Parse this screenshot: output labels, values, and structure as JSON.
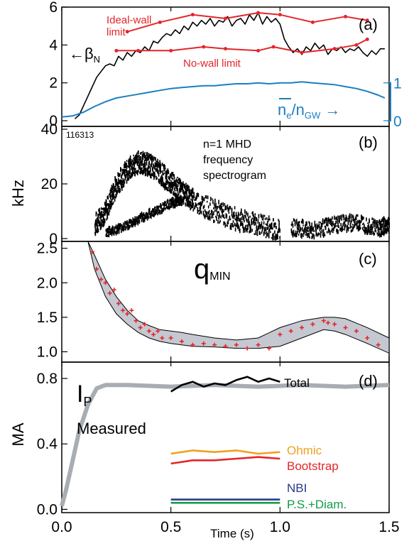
{
  "shot": "116313",
  "x_axis": {
    "label": "Time (s)",
    "range": [
      0,
      1.5
    ],
    "ticks": [
      "0.0",
      "0.5",
      "1.0",
      "1.5"
    ]
  },
  "colors": {
    "black": "#000000",
    "red": "#e4252b",
    "blue": "#1b7fc0",
    "gray": "#a8adb3",
    "band": "#c5c8d0",
    "orange": "#f0a020",
    "navy": "#283a8c",
    "green": "#149a48"
  },
  "chart_data": [
    {
      "type": "line",
      "panel": "(a)",
      "ylim": [
        -0.3,
        6
      ],
      "y_ticks": [
        "0",
        "2",
        "4",
        "6"
      ],
      "y2_ticks": [
        "0",
        "1"
      ],
      "labels": {
        "ideal_wall": "Ideal-wall\nlimit",
        "no_wall": "No-wall limit",
        "beta": "βN",
        "density": "ne/nGW"
      },
      "series": [
        {
          "name": "βN",
          "color": "black",
          "x": [
            0.06,
            0.08,
            0.1,
            0.12,
            0.14,
            0.16,
            0.18,
            0.2,
            0.22,
            0.24,
            0.26,
            0.28,
            0.3,
            0.32,
            0.34,
            0.36,
            0.38,
            0.4,
            0.42,
            0.44,
            0.46,
            0.48,
            0.5,
            0.52,
            0.54,
            0.56,
            0.58,
            0.6,
            0.62,
            0.64,
            0.66,
            0.68,
            0.7,
            0.72,
            0.74,
            0.76,
            0.78,
            0.8,
            0.82,
            0.84,
            0.86,
            0.88,
            0.9,
            0.92,
            0.94,
            0.96,
            0.98,
            1.0,
            1.02,
            1.04,
            1.06,
            1.08,
            1.1,
            1.12,
            1.14,
            1.16,
            1.18,
            1.2,
            1.22,
            1.24,
            1.26,
            1.28,
            1.3,
            1.32,
            1.34,
            1.36,
            1.38,
            1.4,
            1.42,
            1.44,
            1.46,
            1.48
          ],
          "y": [
            0.1,
            0.3,
            0.8,
            1.3,
            1.8,
            2.3,
            2.6,
            2.9,
            3.0,
            2.9,
            3.4,
            3.2,
            3.6,
            3.4,
            3.7,
            3.6,
            3.9,
            3.7,
            4.2,
            4.1,
            4.4,
            4.6,
            4.5,
            4.8,
            4.6,
            5.0,
            4.8,
            5.2,
            5.0,
            5.3,
            5.1,
            5.4,
            5.0,
            5.3,
            5.2,
            5.5,
            5.0,
            5.3,
            5.4,
            5.1,
            5.6,
            5.3,
            5.7,
            5.1,
            5.5,
            5.2,
            5.4,
            5.1,
            4.3,
            3.9,
            3.6,
            3.8,
            3.5,
            3.9,
            3.7,
            4.1,
            3.8,
            4.0,
            3.5,
            3.8,
            3.7,
            3.9,
            3.6,
            3.8,
            3.7,
            3.9,
            3.6,
            3.4,
            3.7,
            3.5,
            3.8,
            3.8
          ]
        },
        {
          "name": "Ideal-wall limit",
          "color": "red",
          "x": [
            0.3,
            0.45,
            0.6,
            0.75,
            0.9,
            1.0,
            1.15,
            1.3,
            1.4
          ],
          "y": [
            4.7,
            5.2,
            5.6,
            5.4,
            5.7,
            5.6,
            5.2,
            5.5,
            5.3
          ]
        },
        {
          "name": "No-wall limit",
          "color": "red",
          "x": [
            0.25,
            0.35,
            0.5,
            0.65,
            0.75,
            0.9,
            0.97,
            1.1,
            1.25,
            1.35,
            1.4
          ],
          "y": [
            3.7,
            3.7,
            3.7,
            3.9,
            3.8,
            3.7,
            3.9,
            3.6,
            3.8,
            4.0,
            4.3
          ]
        },
        {
          "name": "ne/nGW",
          "color": "blue",
          "axis": "right",
          "x": [
            0.0,
            0.05,
            0.1,
            0.15,
            0.2,
            0.25,
            0.3,
            0.35,
            0.4,
            0.45,
            0.5,
            0.55,
            0.6,
            0.65,
            0.7,
            0.75,
            0.8,
            0.85,
            0.9,
            0.95,
            1.0,
            1.05,
            1.1,
            1.15,
            1.2,
            1.25,
            1.3,
            1.35,
            1.4,
            1.45,
            1.48
          ],
          "y": [
            0.2,
            0.25,
            0.45,
            0.75,
            1.0,
            1.2,
            1.3,
            1.4,
            1.5,
            1.6,
            1.7,
            1.75,
            1.8,
            1.85,
            1.85,
            1.9,
            1.95,
            1.95,
            2.0,
            1.95,
            2.0,
            2.0,
            2.05,
            2.0,
            1.95,
            1.9,
            1.8,
            1.7,
            1.55,
            1.35,
            1.2
          ]
        }
      ]
    },
    {
      "type": "heatmap",
      "panel": "(b)",
      "ylabel": "kHz",
      "ylim": [
        0,
        40
      ],
      "y_ticks": [
        "0",
        "20",
        "40"
      ],
      "annotation": "n=1 MHD\nfrequency\nspectrogram",
      "tracks": [
        {
          "x": [
            0.15,
            0.2,
            0.25,
            0.3,
            0.35,
            0.4,
            0.45,
            0.5,
            0.55,
            0.6,
            0.7,
            0.8,
            0.9,
            1.0
          ],
          "y": [
            5,
            10,
            20,
            25,
            28,
            27,
            24,
            20,
            17,
            14,
            10,
            7,
            5,
            3
          ],
          "spread": 4
        },
        {
          "x": [
            0.2,
            0.3,
            0.4,
            0.5,
            0.55
          ],
          "y": [
            2,
            5,
            9,
            13,
            14
          ],
          "spread": 1.5
        },
        {
          "x": [
            1.05,
            1.15,
            1.25,
            1.35,
            1.45,
            1.5
          ],
          "y": [
            4,
            3,
            5,
            6,
            4,
            5
          ],
          "spread": 3
        }
      ]
    },
    {
      "type": "area",
      "panel": "(c)",
      "title": "qMIN",
      "ylim": [
        0.85,
        2.6
      ],
      "y_ticks": [
        "1.0",
        "1.5",
        "2.0",
        "2.5"
      ],
      "band": {
        "x": [
          0.12,
          0.15,
          0.2,
          0.25,
          0.3,
          0.35,
          0.4,
          0.45,
          0.5,
          0.55,
          0.6,
          0.7,
          0.8,
          0.9,
          1.0,
          1.1,
          1.2,
          1.25,
          1.3,
          1.4,
          1.5
        ],
        "upper": [
          2.6,
          2.4,
          2.05,
          1.8,
          1.6,
          1.45,
          1.38,
          1.32,
          1.3,
          1.28,
          1.25,
          1.2,
          1.17,
          1.2,
          1.35,
          1.45,
          1.5,
          1.5,
          1.48,
          1.35,
          1.2
        ],
        "lower": [
          2.6,
          2.2,
          1.8,
          1.55,
          1.4,
          1.28,
          1.2,
          1.15,
          1.12,
          1.1,
          1.08,
          1.07,
          1.05,
          1.05,
          1.08,
          1.2,
          1.32,
          1.3,
          1.25,
          1.12,
          0.98
        ]
      },
      "points": {
        "color": "red",
        "x": [
          0.14,
          0.16,
          0.18,
          0.2,
          0.22,
          0.24,
          0.26,
          0.28,
          0.3,
          0.32,
          0.34,
          0.36,
          0.38,
          0.4,
          0.42,
          0.44,
          0.46,
          0.5,
          0.55,
          0.6,
          0.65,
          0.7,
          0.75,
          0.8,
          0.85,
          0.9,
          0.95,
          1.0,
          1.05,
          1.1,
          1.15,
          1.2,
          1.22,
          1.25,
          1.3,
          1.35,
          1.4,
          1.45
        ],
        "y": [
          2.45,
          2.2,
          2.05,
          2.0,
          1.85,
          1.9,
          1.7,
          1.6,
          1.55,
          1.6,
          1.45,
          1.35,
          1.4,
          1.3,
          1.25,
          1.3,
          1.2,
          1.2,
          1.15,
          1.1,
          1.12,
          1.1,
          1.08,
          1.1,
          1.05,
          1.1,
          1.05,
          1.25,
          1.3,
          1.35,
          1.4,
          1.45,
          1.42,
          1.4,
          1.35,
          1.3,
          1.2,
          1.1
        ]
      }
    },
    {
      "type": "line",
      "panel": "(d)",
      "ylabel": "MA",
      "ylim": [
        -0.02,
        0.9
      ],
      "y_ticks": [
        "0.0",
        "0.4",
        "0.8"
      ],
      "labels": {
        "ip": "IP",
        "measured": "Measured"
      },
      "series": [
        {
          "name": "Measured",
          "color": "gray",
          "x": [
            0.0,
            0.02,
            0.05,
            0.08,
            0.12,
            0.16,
            0.2,
            0.3,
            0.5,
            0.7,
            0.9,
            1.1,
            1.3,
            1.5
          ],
          "y": [
            0.02,
            0.12,
            0.3,
            0.48,
            0.64,
            0.74,
            0.76,
            0.76,
            0.75,
            0.76,
            0.75,
            0.76,
            0.75,
            0.76
          ]
        },
        {
          "name": "Total",
          "color": "black",
          "x": [
            0.5,
            0.55,
            0.6,
            0.65,
            0.7,
            0.75,
            0.8,
            0.85,
            0.9,
            0.95,
            1.0
          ],
          "y": [
            0.72,
            0.76,
            0.78,
            0.75,
            0.77,
            0.76,
            0.79,
            0.81,
            0.78,
            0.8,
            0.78
          ]
        },
        {
          "name": "Ohmic",
          "color": "orange",
          "x": [
            0.5,
            0.6,
            0.7,
            0.8,
            0.9,
            1.0
          ],
          "y": [
            0.34,
            0.36,
            0.35,
            0.36,
            0.34,
            0.35
          ]
        },
        {
          "name": "Bootstrap",
          "color": "red",
          "x": [
            0.5,
            0.6,
            0.7,
            0.8,
            0.9,
            1.0
          ],
          "y": [
            0.28,
            0.3,
            0.3,
            0.31,
            0.32,
            0.31
          ]
        },
        {
          "name": "NBI",
          "color": "navy",
          "x": [
            0.5,
            0.7,
            0.9,
            1.0
          ],
          "y": [
            0.06,
            0.06,
            0.06,
            0.06
          ]
        },
        {
          "name": "P.S.+Diam.",
          "color": "green",
          "x": [
            0.5,
            0.7,
            0.9,
            1.0
          ],
          "y": [
            0.04,
            0.04,
            0.04,
            0.04
          ]
        }
      ]
    }
  ]
}
